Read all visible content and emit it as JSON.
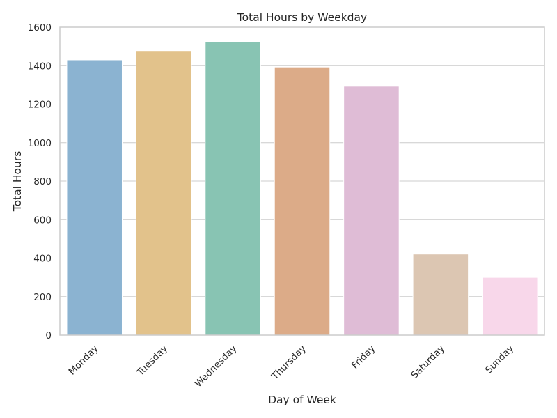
{
  "chart_data": {
    "type": "bar",
    "title": "Total Hours by Weekday",
    "xlabel": "Day of Week",
    "ylabel": "Total Hours",
    "categories": [
      "Monday",
      "Tuesday",
      "Wednesday",
      "Thursday",
      "Friday",
      "Saturday",
      "Sunday"
    ],
    "values": [
      1430,
      1478,
      1523,
      1393,
      1293,
      421,
      300
    ],
    "colors": [
      "#8bb3d1",
      "#e2c28b",
      "#88c4b3",
      "#dcab88",
      "#dfbcd6",
      "#dcc6b2",
      "#f8d7ea"
    ],
    "ylim": [
      0,
      1600
    ],
    "yticks": [
      0,
      200,
      400,
      600,
      800,
      1000,
      1200,
      1400,
      1600
    ],
    "grid": true,
    "legend": "none"
  }
}
